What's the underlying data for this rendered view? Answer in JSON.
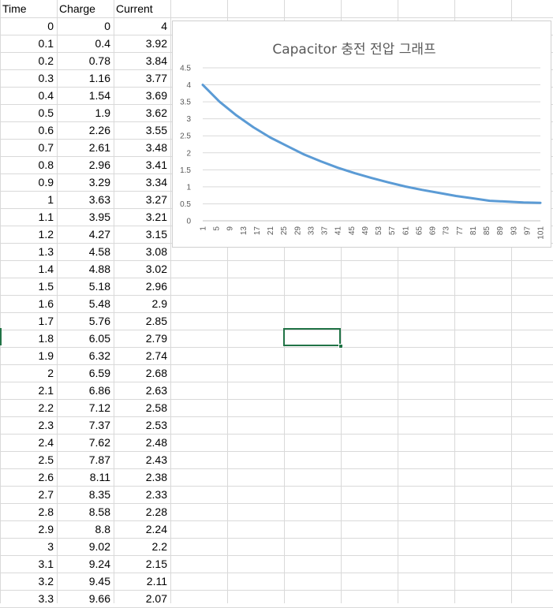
{
  "spreadsheet": {
    "headers": [
      "Time",
      "Charge",
      "Current"
    ],
    "rows": [
      [
        "0",
        "0",
        "4"
      ],
      [
        "0.1",
        "0.4",
        "3.92"
      ],
      [
        "0.2",
        "0.78",
        "3.84"
      ],
      [
        "0.3",
        "1.16",
        "3.77"
      ],
      [
        "0.4",
        "1.54",
        "3.69"
      ],
      [
        "0.5",
        "1.9",
        "3.62"
      ],
      [
        "0.6",
        "2.26",
        "3.55"
      ],
      [
        "0.7",
        "2.61",
        "3.48"
      ],
      [
        "0.8",
        "2.96",
        "3.41"
      ],
      [
        "0.9",
        "3.29",
        "3.34"
      ],
      [
        "1",
        "3.63",
        "3.27"
      ],
      [
        "1.1",
        "3.95",
        "3.21"
      ],
      [
        "1.2",
        "4.27",
        "3.15"
      ],
      [
        "1.3",
        "4.58",
        "3.08"
      ],
      [
        "1.4",
        "4.88",
        "3.02"
      ],
      [
        "1.5",
        "5.18",
        "2.96"
      ],
      [
        "1.6",
        "5.48",
        "2.9"
      ],
      [
        "1.7",
        "5.76",
        "2.85"
      ],
      [
        "1.8",
        "6.05",
        "2.79"
      ],
      [
        "1.9",
        "6.32",
        "2.74"
      ],
      [
        "2",
        "6.59",
        "2.68"
      ],
      [
        "2.1",
        "6.86",
        "2.63"
      ],
      [
        "2.2",
        "7.12",
        "2.58"
      ],
      [
        "2.3",
        "7.37",
        "2.53"
      ],
      [
        "2.4",
        "7.62",
        "2.48"
      ],
      [
        "2.5",
        "7.87",
        "2.43"
      ],
      [
        "2.6",
        "8.11",
        "2.38"
      ],
      [
        "2.7",
        "8.35",
        "2.33"
      ],
      [
        "2.8",
        "8.58",
        "2.28"
      ],
      [
        "2.9",
        "8.8",
        "2.24"
      ],
      [
        "3",
        "9.02",
        "2.2"
      ],
      [
        "3.1",
        "9.24",
        "2.15"
      ],
      [
        "3.2",
        "9.45",
        "2.11"
      ],
      [
        "3.3",
        "9.66",
        "2.07"
      ]
    ],
    "selection_color": "#217346"
  },
  "chart_data": {
    "type": "line",
    "title": "Capacitor 충전 전압 그래프",
    "xlabel": "",
    "ylabel": "",
    "ylim": [
      0,
      4.5
    ],
    "yticks": [
      "0",
      "0.5",
      "1",
      "1.5",
      "2",
      "2.5",
      "3",
      "3.5",
      "4",
      "4.5"
    ],
    "x_range": [
      1,
      101
    ],
    "xticks": [
      "1",
      "5",
      "9",
      "13",
      "17",
      "21",
      "25",
      "29",
      "33",
      "37",
      "41",
      "45",
      "49",
      "53",
      "57",
      "61",
      "65",
      "69",
      "73",
      "77",
      "81",
      "85",
      "89",
      "93",
      "97",
      "101"
    ],
    "grid": true,
    "legend": "none",
    "series_color": "#5b9bd5",
    "series": [
      {
        "values": [
          4,
          3.5,
          3.1,
          2.75,
          2.45,
          2.2,
          1.95,
          1.75,
          1.56,
          1.4,
          1.26,
          1.13,
          1.01,
          0.91,
          0.82,
          0.73,
          0.66,
          0.59,
          0.54,
          0.53
        ],
        "x": [
          1,
          6,
          11,
          16,
          21,
          26,
          31,
          36,
          41,
          46,
          51,
          56,
          61,
          66,
          71,
          76,
          81,
          86,
          96,
          101
        ]
      }
    ]
  }
}
